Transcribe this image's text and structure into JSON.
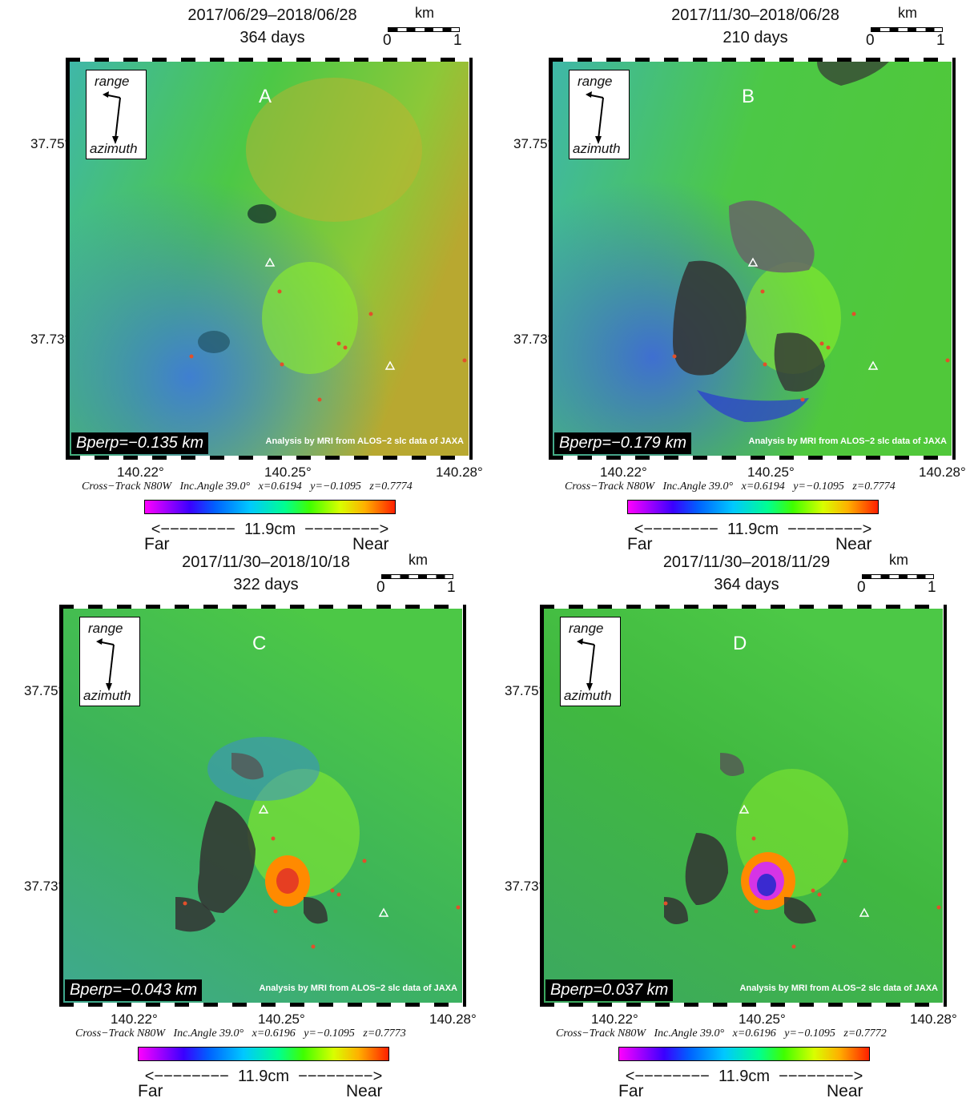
{
  "panels": [
    {
      "letter": "A",
      "date_range": "2017/06/29–2018/06/28",
      "days": "364 days",
      "bperp": "Bperp=−0.135 km",
      "cross_track": "Cross−Track N80W   Inc.Angle 39.0°   x=0.6194   y=−0.1095   z=0.7774",
      "overlay": "none"
    },
    {
      "letter": "B",
      "date_range": "2017/11/30–2018/06/28",
      "days": "210 days",
      "bperp": "Bperp=−0.179 km",
      "cross_track": "Cross−Track N80W   Inc.Angle 39.0°   x=0.6194   y=−0.1095   z=0.7774",
      "overlay": "decorrelated"
    },
    {
      "letter": "C",
      "date_range": "2017/11/30–2018/10/18",
      "days": "322 days",
      "bperp": "Bperp=−0.043 km",
      "cross_track": "Cross−Track N80W   Inc.Angle 39.0°   x=0.6196   y=−0.1095   z=0.7773",
      "overlay": "deformation-mild"
    },
    {
      "letter": "D",
      "date_range": "2017/11/30–2018/11/29",
      "days": "364 days",
      "bperp": "Bperp=0.037 km",
      "cross_track": "Cross−Track N80W   Inc.Angle 39.0°   x=0.6196   y=−0.1095   z=0.7772",
      "overlay": "deformation-strong"
    }
  ],
  "common": {
    "scale_unit": "km",
    "scale_min": "0",
    "scale_max": "1",
    "range_label": "range",
    "azimuth_label": "azimuth",
    "credit": "Analysis by MRI from ALOS−2 slc data of JAXA",
    "lat_labels": [
      "37.75°",
      "37.73°"
    ],
    "lon_labels": [
      "140.22°",
      "140.25°",
      "140.28°"
    ],
    "colorbar_label": "<−−−−−−−−  11.9cm  −−−−−−−−>",
    "far_label": "Far",
    "near_label": "Near"
  },
  "colors": {
    "terrain_green": "#4cc846",
    "terrain_cyan": "#3fb7a8",
    "terrain_blue": "#3f7fd0",
    "terrain_yellow": "#b8b830",
    "decorrelated_gray": "#555555",
    "volcano_triangle": "#ffffff",
    "epicenter_dot": "#e2502a"
  }
}
